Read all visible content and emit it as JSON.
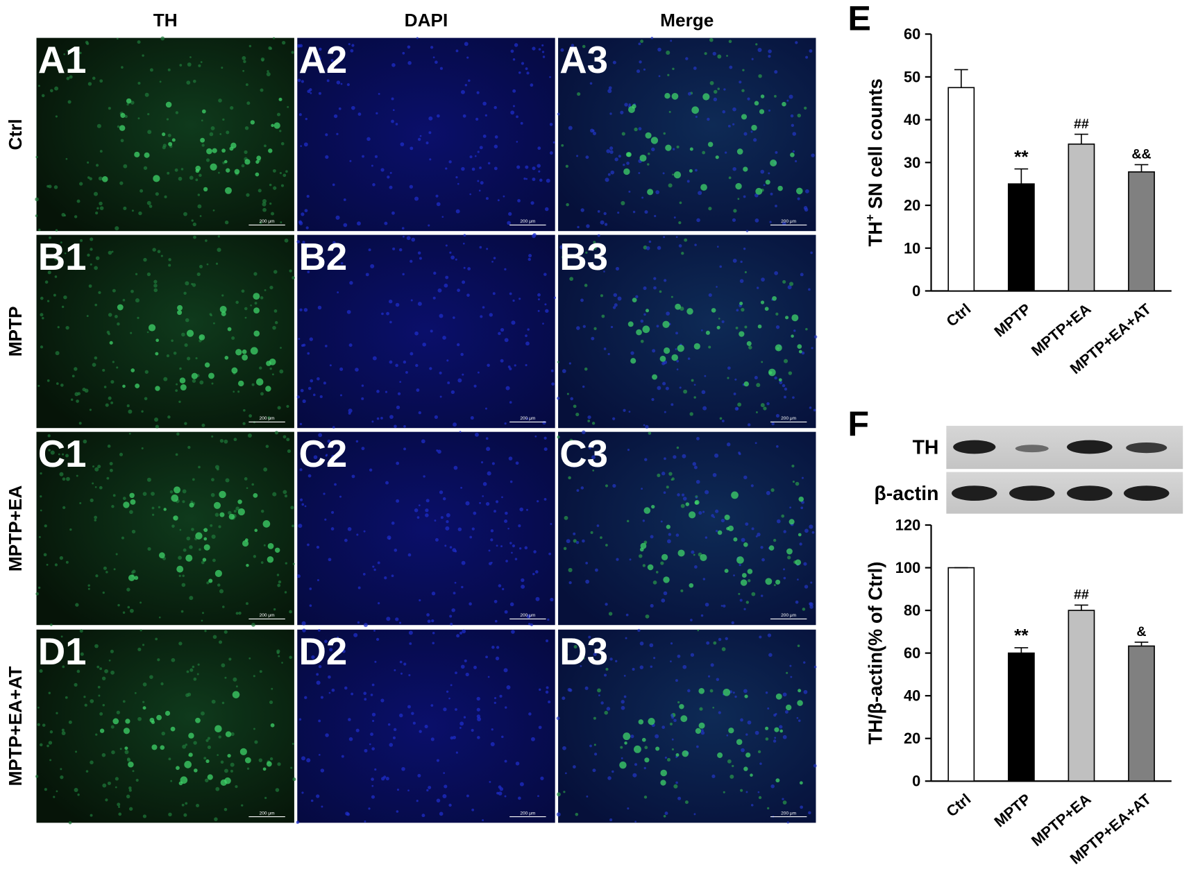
{
  "figure": {
    "column_headers": [
      "TH",
      "DAPI",
      "Merge"
    ],
    "row_labels": [
      "Ctrl",
      "MPTP",
      "MPTP+EA",
      "MPTP+EA+AT"
    ],
    "panel_labels": [
      [
        "A1",
        "A2",
        "A3"
      ],
      [
        "B1",
        "B2",
        "B3"
      ],
      [
        "C1",
        "C2",
        "C3"
      ],
      [
        "D1",
        "D2",
        "D3"
      ]
    ],
    "scale_bar": "200 μm"
  },
  "chart_data": [
    {
      "type": "bar",
      "panel_label": "E",
      "ylabel": {
        "main": "TH",
        "sup": "+",
        "rest": " SN cell counts"
      },
      "categories": [
        "Ctrl",
        "MPTP",
        "MPTP+EA",
        "MPTP+EA+AT"
      ],
      "values": [
        47.5,
        25,
        34.3,
        27.8
      ],
      "errors": [
        4.2,
        3.5,
        2.3,
        1.7
      ],
      "colors": [
        "#ffffff",
        "#000000",
        "#c0c0c0",
        "#808080"
      ],
      "annotations": [
        null,
        "**",
        "##",
        "&&"
      ],
      "ylim": [
        0,
        60
      ],
      "yticks": [
        0,
        10,
        20,
        30,
        40,
        50,
        60
      ]
    },
    {
      "type": "bar",
      "panel_label": "F",
      "blot_labels": [
        "TH",
        "β-actin"
      ],
      "ylabel": "TH/β-actin(% of Ctrl)",
      "categories": [
        "Ctrl",
        "MPTP",
        "MPTP+EA",
        "MPTP+EA+AT"
      ],
      "values": [
        100,
        60,
        80,
        63.3
      ],
      "errors": [
        0,
        2.5,
        2.5,
        1.8
      ],
      "colors": [
        "#ffffff",
        "#000000",
        "#c0c0c0",
        "#808080"
      ],
      "annotations": [
        null,
        "**",
        "##",
        "&"
      ],
      "ylim": [
        0,
        120
      ],
      "yticks": [
        0,
        20,
        40,
        60,
        80,
        100,
        120
      ]
    }
  ]
}
